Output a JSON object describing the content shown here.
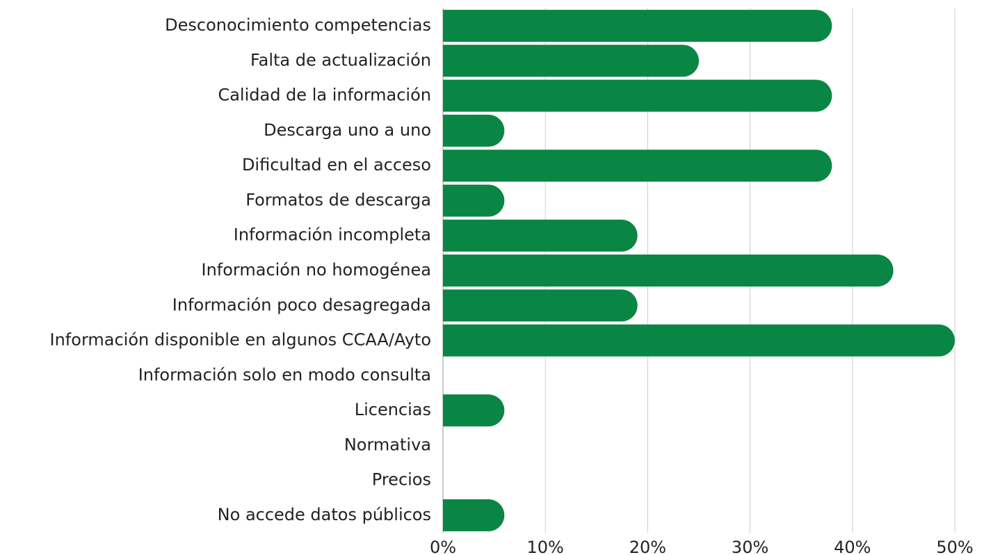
{
  "chart_data": {
    "type": "barh",
    "categories": [
      "Desconocimiento competencias",
      "Falta de actualización",
      "Calidad de la información",
      "Descarga uno a uno",
      "Dificultad en el acceso",
      "Formatos de descarga",
      "Información incompleta",
      "Información no homogénea",
      "Información poco desagregada",
      "Información disponible en algunos CCAA/Ayto",
      "Información solo en modo consulta",
      "Licencias",
      "Normativa",
      "Precios",
      "No accede datos públicos"
    ],
    "values": [
      38,
      25,
      38,
      6,
      38,
      6,
      19,
      44,
      19,
      50,
      0,
      6,
      0,
      0,
      6
    ],
    "color": "#0a8644",
    "xlim": [
      0,
      50
    ],
    "xticks": [
      {
        "value": 0,
        "label": "0%"
      },
      {
        "value": 10,
        "label": "10%"
      },
      {
        "value": 20,
        "label": "20%"
      },
      {
        "value": 30,
        "label": "30%"
      },
      {
        "value": 40,
        "label": "40%"
      },
      {
        "value": 50,
        "label": "50%"
      }
    ],
    "grid": true
  }
}
